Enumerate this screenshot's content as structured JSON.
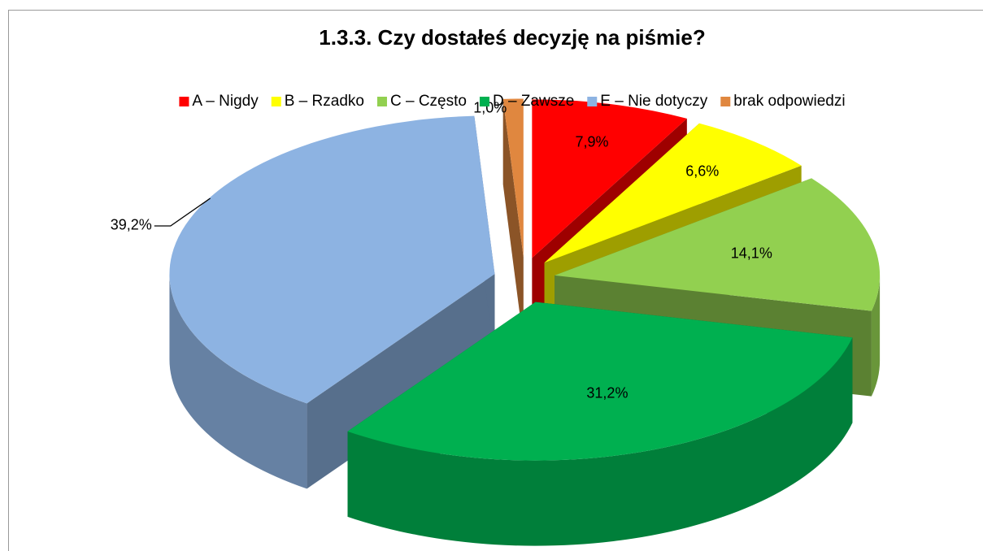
{
  "chart_data": {
    "type": "pie3d",
    "title": "1.3.3. Czy dostałeś decyzję na piśmie?",
    "categories": [
      "A – Nigdy",
      "B – Rzadko",
      "C – Często",
      "D – Zawsze",
      "E – Nie dotyczy",
      "brak odpowiedzi"
    ],
    "values": [
      7.9,
      6.6,
      14.1,
      31.2,
      39.2,
      1.0
    ],
    "value_labels": [
      "7,9%",
      "6,6%",
      "14,1%",
      "31,2%",
      "39,2%",
      "1,0%"
    ],
    "colors": [
      "#ff0000",
      "#ffff00",
      "#92d050",
      "#00b050",
      "#8db3e2",
      "#e0873f"
    ],
    "legend": "top"
  }
}
